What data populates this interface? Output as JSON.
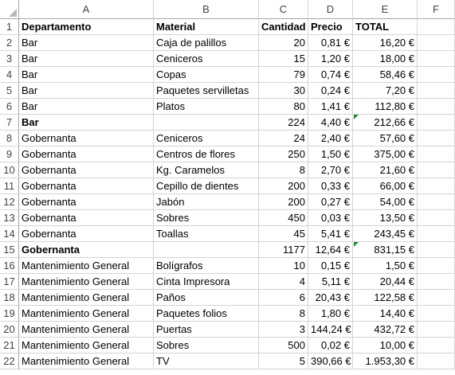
{
  "columns": [
    "A",
    "B",
    "C",
    "D",
    "E",
    "F"
  ],
  "rows": [
    {
      "num": "1",
      "cells": [
        "Departamento",
        "Material",
        "Cantidad",
        "Precio",
        "TOTAL",
        ""
      ],
      "header": true
    },
    {
      "num": "2",
      "cells": [
        "Bar",
        "Caja de palillos",
        "20",
        "0,81 €",
        "16,20 €",
        ""
      ]
    },
    {
      "num": "3",
      "cells": [
        "Bar",
        "Ceniceros",
        "15",
        "1,20 €",
        "18,00 €",
        ""
      ]
    },
    {
      "num": "4",
      "cells": [
        "Bar",
        "Copas",
        "79",
        "0,74 €",
        "58,46 €",
        ""
      ]
    },
    {
      "num": "5",
      "cells": [
        "Bar",
        "Paquetes servilletas",
        "30",
        "0,24 €",
        "7,20 €",
        ""
      ]
    },
    {
      "num": "6",
      "cells": [
        "Bar",
        "Platos",
        "80",
        "1,41 €",
        "112,80 €",
        ""
      ]
    },
    {
      "num": "7",
      "cells": [
        "Bar",
        "",
        "224",
        "4,40 €",
        "212,66 €",
        ""
      ],
      "subtotal": true
    },
    {
      "num": "8",
      "cells": [
        "Gobernanta",
        "Ceniceros",
        "24",
        "2,40 €",
        "57,60 €",
        ""
      ]
    },
    {
      "num": "9",
      "cells": [
        "Gobernanta",
        "Centros de flores",
        "250",
        "1,50 €",
        "375,00 €",
        ""
      ]
    },
    {
      "num": "10",
      "cells": [
        "Gobernanta",
        "Kg. Caramelos",
        "8",
        "2,70 €",
        "21,60 €",
        ""
      ]
    },
    {
      "num": "11",
      "cells": [
        "Gobernanta",
        "Cepillo de dientes",
        "200",
        "0,33 €",
        "66,00 €",
        ""
      ]
    },
    {
      "num": "12",
      "cells": [
        "Gobernanta",
        "Jabón",
        "200",
        "0,27 €",
        "54,00 €",
        ""
      ]
    },
    {
      "num": "13",
      "cells": [
        "Gobernanta",
        "Sobres",
        "450",
        "0,03 €",
        "13,50 €",
        ""
      ]
    },
    {
      "num": "14",
      "cells": [
        "Gobernanta",
        "Toallas",
        "45",
        "5,41 €",
        "243,45 €",
        ""
      ]
    },
    {
      "num": "15",
      "cells": [
        "Gobernanta",
        "",
        "1177",
        "12,64 €",
        "831,15 €",
        ""
      ],
      "subtotal": true
    },
    {
      "num": "16",
      "cells": [
        "Mantenimiento General",
        "Bolígrafos",
        "10",
        "0,15 €",
        "1,50 €",
        ""
      ]
    },
    {
      "num": "17",
      "cells": [
        "Mantenimiento General",
        "Cinta Impresora",
        "4",
        "5,11 €",
        "20,44 €",
        ""
      ]
    },
    {
      "num": "18",
      "cells": [
        "Mantenimiento General",
        "Paños",
        "6",
        "20,43 €",
        "122,58 €",
        ""
      ]
    },
    {
      "num": "19",
      "cells": [
        "Mantenimiento General",
        "Paquetes folios",
        "8",
        "1,80 €",
        "14,40 €",
        ""
      ]
    },
    {
      "num": "20",
      "cells": [
        "Mantenimiento General",
        "Puertas",
        "3",
        "144,24 €",
        "432,72 €",
        ""
      ]
    },
    {
      "num": "21",
      "cells": [
        "Mantenimiento General",
        "Sobres",
        "500",
        "0,02 €",
        "10,00 €",
        ""
      ]
    },
    {
      "num": "22",
      "cells": [
        "Mantenimiento General",
        "TV",
        "5",
        "390,66 €",
        "1.953,30 €",
        ""
      ]
    }
  ]
}
